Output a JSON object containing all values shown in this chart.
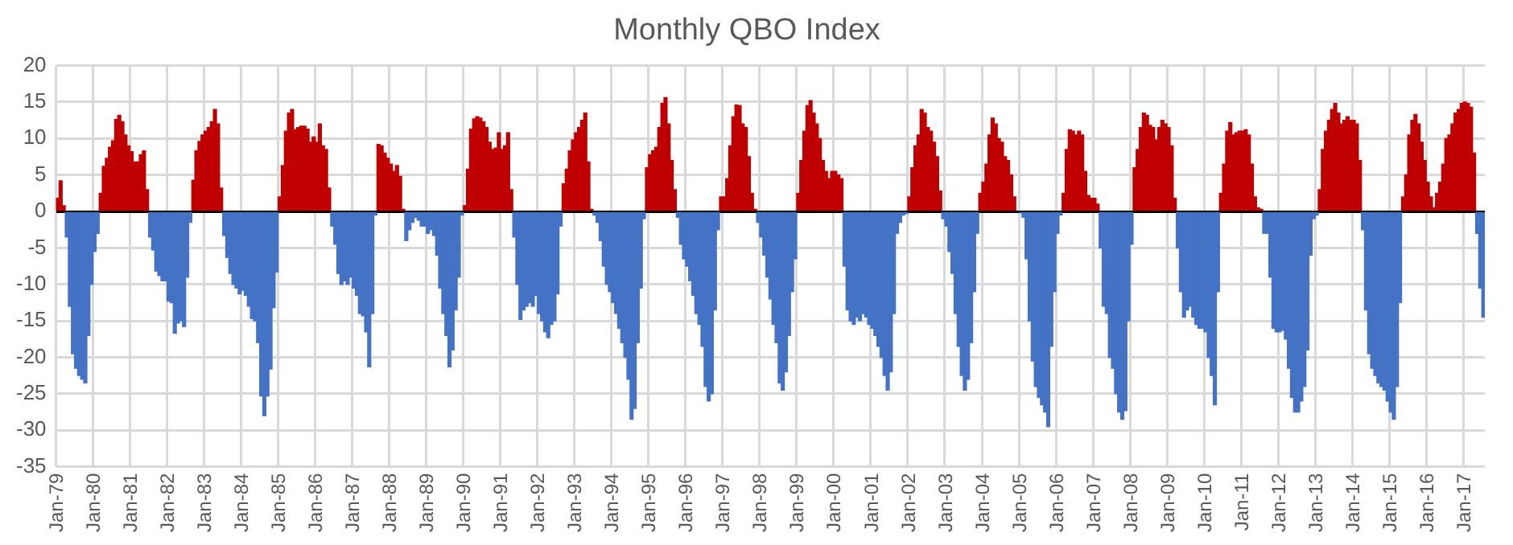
{
  "chart_data": {
    "type": "bar",
    "title": "Monthly QBO Index",
    "categories": [
      "Jan-79",
      null,
      null,
      null,
      null,
      null,
      null,
      null,
      null,
      null,
      null,
      null,
      "Jan-80",
      null,
      null,
      null,
      null,
      null,
      null,
      null,
      null,
      null,
      null,
      null,
      "Jan-81",
      null,
      null,
      null,
      null,
      null,
      null,
      null,
      null,
      null,
      null,
      null,
      "Jan-82",
      null,
      null,
      null,
      null,
      null,
      null,
      null,
      null,
      null,
      null,
      null,
      "Jan-83",
      null,
      null,
      null,
      null,
      null,
      null,
      null,
      null,
      null,
      null,
      null,
      "Jan-84",
      null,
      null,
      null,
      null,
      null,
      null,
      null,
      null,
      null,
      null,
      null,
      "Jan-85",
      null,
      null,
      null,
      null,
      null,
      null,
      null,
      null,
      null,
      null,
      null,
      "Jan-86",
      null,
      null,
      null,
      null,
      null,
      null,
      null,
      null,
      null,
      null,
      null,
      "Jan-87",
      null,
      null,
      null,
      null,
      null,
      null,
      null,
      null,
      null,
      null,
      null,
      "Jan-88",
      null,
      null,
      null,
      null,
      null,
      null,
      null,
      null,
      null,
      null,
      null,
      "Jan-89",
      null,
      null,
      null,
      null,
      null,
      null,
      null,
      null,
      null,
      null,
      null,
      "Jan-90",
      null,
      null,
      null,
      null,
      null,
      null,
      null,
      null,
      null,
      null,
      null,
      "Jan-91",
      null,
      null,
      null,
      null,
      null,
      null,
      null,
      null,
      null,
      null,
      null,
      "Jan-92",
      null,
      null,
      null,
      null,
      null,
      null,
      null,
      null,
      null,
      null,
      null,
      "Jan-93",
      null,
      null,
      null,
      null,
      null,
      null,
      null,
      null,
      null,
      null,
      null,
      "Jan-94",
      null,
      null,
      null,
      null,
      null,
      null,
      null,
      null,
      null,
      null,
      null,
      "Jan-95",
      null,
      null,
      null,
      null,
      null,
      null,
      null,
      null,
      null,
      null,
      null,
      "Jan-96",
      null,
      null,
      null,
      null,
      null,
      null,
      null,
      null,
      null,
      null,
      null,
      "Jan-97",
      null,
      null,
      null,
      null,
      null,
      null,
      null,
      null,
      null,
      null,
      null,
      "Jan-98",
      null,
      null,
      null,
      null,
      null,
      null,
      null,
      null,
      null,
      null,
      null,
      "Jan-99",
      null,
      null,
      null,
      null,
      null,
      null,
      null,
      null,
      null,
      null,
      null,
      "Jan-00",
      null,
      null,
      null,
      null,
      null,
      null,
      null,
      null,
      null,
      null,
      null,
      "Jan-01",
      null,
      null,
      null,
      null,
      null,
      null,
      null,
      null,
      null,
      null,
      null,
      "Jan-02",
      null,
      null,
      null,
      null,
      null,
      null,
      null,
      null,
      null,
      null,
      null,
      "Jan-03",
      null,
      null,
      null,
      null,
      null,
      null,
      null,
      null,
      null,
      null,
      null,
      "Jan-04",
      null,
      null,
      null,
      null,
      null,
      null,
      null,
      null,
      null,
      null,
      null,
      "Jan-05",
      null,
      null,
      null,
      null,
      null,
      null,
      null,
      null,
      null,
      null,
      null,
      "Jan-06",
      null,
      null,
      null,
      null,
      null,
      null,
      null,
      null,
      null,
      null,
      null,
      "Jan-07",
      null,
      null,
      null,
      null,
      null,
      null,
      null,
      null,
      null,
      null,
      null,
      "Jan-08",
      null,
      null,
      null,
      null,
      null,
      null,
      null,
      null,
      null,
      null,
      null,
      "Jan-09",
      null,
      null,
      null,
      null,
      null,
      null,
      null,
      null,
      null,
      null,
      null,
      "Jan-10",
      null,
      null,
      null,
      null,
      null,
      null,
      null,
      null,
      null,
      null,
      null,
      "Jan-11",
      null,
      null,
      null,
      null,
      null,
      null,
      null,
      null,
      null,
      null,
      null,
      "Jan-12",
      null,
      null,
      null,
      null,
      null,
      null,
      null,
      null,
      null,
      null,
      null,
      "Jan-13",
      null,
      null,
      null,
      null,
      null,
      null,
      null,
      null,
      null,
      null,
      null,
      "Jan-14",
      null,
      null,
      null,
      null,
      null,
      null,
      null,
      null,
      null,
      null,
      null,
      "Jan-15",
      null,
      null,
      null,
      null,
      null,
      null,
      null,
      null,
      null,
      null,
      null,
      "Jan-16",
      null,
      null,
      null,
      null,
      null,
      null,
      null,
      null,
      null,
      null,
      null,
      "Jan-17",
      null,
      null,
      null,
      null,
      null,
      null
    ],
    "values": [
      1.8,
      4.2,
      0.8,
      -3.5,
      -13,
      -19.5,
      -21.5,
      -22.5,
      -23,
      -23.5,
      -17,
      -10,
      -5.5,
      -3,
      2.5,
      6.2,
      7.3,
      8.8,
      9.7,
      12.6,
      13.2,
      12.3,
      10.5,
      9,
      8.2,
      6.8,
      6.8,
      7.8,
      8.3,
      3,
      -3.5,
      -5.3,
      -8.2,
      -8.8,
      -9.5,
      -9.5,
      -12.3,
      -12.5,
      -16.7,
      -15.3,
      -15,
      -15.8,
      -9,
      -1.5,
      4.3,
      8.3,
      9.6,
      10.5,
      11,
      11.5,
      12.3,
      14,
      12,
      3.2,
      -3.3,
      -6.3,
      -8.5,
      -10,
      -10.5,
      -11.3,
      -10.8,
      -11.5,
      -13,
      -14.7,
      -15,
      -18,
      -25.3,
      -28,
      -25.3,
      -21.6,
      -13.2,
      -8.3,
      2,
      6.3,
      11,
      13.5,
      14,
      11.2,
      11.5,
      11.7,
      11.7,
      11.3,
      9.5,
      10.2,
      9.5,
      12,
      9,
      8.5,
      3.2,
      -2,
      -4.5,
      -8.5,
      -10,
      -9.5,
      -10,
      -9,
      -10.5,
      -11.5,
      -14,
      -14.3,
      -16.5,
      -21.3,
      -14,
      -0.5,
      9.2,
      9,
      8,
      7.3,
      6.5,
      5.5,
      6.3,
      4.8,
      0.3,
      -4,
      -2.5,
      -1.5,
      -0.8,
      -1.2,
      -2,
      -2,
      -3,
      -2.5,
      -3.3,
      -6,
      -10.5,
      -14,
      -17,
      -21.3,
      -19,
      -13.5,
      -9,
      -0.5,
      0.8,
      5.8,
      11.3,
      12.7,
      13,
      12.8,
      12.3,
      11.5,
      9.5,
      8.5,
      8.7,
      10.8,
      8.5,
      9,
      10.8,
      3,
      -3.5,
      -10,
      -14.8,
      -13.5,
      -13,
      -12.5,
      -13,
      -11.5,
      -14,
      -15,
      -16.5,
      -17.3,
      -15.5,
      -15,
      -11.3,
      -2,
      3.8,
      5.8,
      8.3,
      9.8,
      10.8,
      11.5,
      12.5,
      13.5,
      6.8,
      0.3,
      -0.5,
      -1.5,
      -4,
      -7.5,
      -10,
      -11,
      -12.5,
      -14,
      -16,
      -18,
      -20,
      -23,
      -28.5,
      -27,
      -18,
      -10.5,
      -1,
      6,
      7.8,
      8.3,
      8.8,
      11.5,
      14.8,
      15.6,
      12,
      7,
      3,
      -0.8,
      -4.5,
      -6.5,
      -7.5,
      -9.5,
      -11.5,
      -14,
      -15.5,
      -18.5,
      -24,
      -26,
      -25,
      -13.5,
      -2.5,
      2,
      2,
      4.5,
      9,
      13,
      14.6,
      14.5,
      12,
      11.5,
      7.5,
      2.5,
      0.3,
      -1.5,
      -3.5,
      -6,
      -9,
      -12,
      -15.5,
      -18,
      -23.5,
      -24.5,
      -22,
      -17,
      -11,
      -6.5,
      2.5,
      7,
      11,
      14.5,
      15.2,
      13.5,
      12,
      10,
      7,
      5.5,
      4.5,
      5.5,
      5.5,
      5,
      4.5,
      -7.5,
      -13.5,
      -15,
      -15.5,
      -14.5,
      -15,
      -14,
      -14.5,
      -15.5,
      -16,
      -17,
      -18.5,
      -20,
      -22.5,
      -24.5,
      -22,
      -14,
      -3,
      -1.5,
      -0.5,
      -0.3,
      2,
      6,
      9,
      10.5,
      14,
      13.5,
      11.5,
      11,
      9.5,
      7.5,
      2.8,
      -1,
      -2,
      -5.5,
      -8.5,
      -14,
      -18.5,
      -22.5,
      -24.5,
      -23,
      -18,
      -11,
      -3,
      2.5,
      4,
      6.5,
      10.5,
      12.8,
      12,
      10,
      9.5,
      7.5,
      7,
      5,
      2,
      null,
      -0.2,
      -0.8,
      -6.5,
      -15,
      -20.5,
      -24,
      -25.5,
      -26.5,
      -27.5,
      -29.5,
      -18.5,
      -11,
      -3,
      -0.5,
      2.5,
      8.5,
      11.2,
      11,
      10.5,
      11,
      10.5,
      5.5,
      2.2,
      1.8,
      1.8,
      1,
      -5,
      -13,
      -14,
      -20,
      -21.5,
      -25,
      -27.5,
      -28.5,
      -27.3,
      -15,
      -4.5,
      6,
      8.5,
      11.5,
      13.5,
      13.2,
      11.8,
      11.5,
      9.8,
      11.5,
      12.5,
      12,
      11.5,
      9,
      1.8,
      -5,
      -11,
      -14.5,
      -13.5,
      -13,
      -14.5,
      -15.5,
      -16,
      -16,
      -16.5,
      -20,
      -22.5,
      -26.5,
      -11,
      2.5,
      6.5,
      11,
      12.2,
      10.5,
      10.8,
      11,
      11,
      11.2,
      10.5,
      6.5,
      2,
      0.5,
      0.3,
      -3,
      -3,
      -9,
      -16,
      -16.5,
      -16.5,
      -16.3,
      -17.5,
      -21.5,
      -25.5,
      -27.5,
      -27.5,
      -26,
      -24,
      -19,
      -6,
      -1,
      -0.5,
      3,
      8.5,
      11,
      12.5,
      14,
      14.8,
      13.5,
      12,
      12.5,
      13,
      12.5,
      12.5,
      12,
      7,
      -2.5,
      -13.5,
      -19.5,
      -21.5,
      -22.5,
      -23.5,
      -24,
      -24.5,
      -26,
      -27.5,
      -28.5,
      -24,
      -12.5,
      2,
      5,
      10.5,
      12.5,
      13.3,
      12,
      9.5,
      7,
      4,
      2,
      0.5,
      2.5,
      4,
      6.5,
      10,
      10.5,
      12,
      13.5,
      14,
      14.8,
      15,
      14.8,
      14.3,
      8,
      -3,
      -10.5,
      -14.5
    ],
    "colors": [
      "#c00000",
      "#c00000",
      "#c00000",
      "#4472c4",
      "#4472c4",
      "#4472c4",
      "#4472c4",
      "#4472c4",
      "#4472c4",
      "#4472c4",
      "#4472c4",
      "#4472c4",
      "#4472c4",
      "#4472c4",
      "#c00000",
      "#c00000",
      "#c00000",
      "#c00000",
      "#c00000",
      "#c00000",
      "#c00000",
      "#c00000",
      "#c00000",
      "#c00000",
      "#c00000",
      "#c00000",
      "#c00000",
      "#c00000",
      "#c00000",
      "#c00000",
      "#4472c4",
      "#4472c4",
      "#4472c4",
      "#4472c4",
      "#4472c4",
      "#4472c4",
      "#4472c4",
      "#4472c4",
      "#4472c4",
      "#4472c4",
      "#4472c4",
      "#4472c4",
      "#4472c4",
      "#4472c4",
      "#c00000",
      "#c00000",
      "#c00000",
      "#c00000",
      "#c00000",
      "#c00000",
      "#c00000",
      "#c00000",
      "#c00000",
      "#c00000",
      "#4472c4",
      "#4472c4",
      "#4472c4",
      "#4472c4",
      "#4472c4",
      "#4472c4",
      "#4472c4",
      "#4472c4",
      "#4472c4",
      "#4472c4",
      "#4472c4",
      "#4472c4",
      "#4472c4",
      "#4472c4",
      "#4472c4",
      "#4472c4",
      "#4472c4",
      "#4472c4",
      "#c00000",
      "#c00000",
      "#c00000",
      "#c00000",
      "#c00000",
      "#c00000",
      "#c00000",
      "#c00000",
      "#c00000",
      "#c00000",
      "#c00000",
      "#c00000",
      "#c00000",
      "#c00000",
      "#c00000",
      "#c00000",
      "#c00000",
      "#4472c4",
      "#4472c4",
      "#4472c4",
      "#4472c4",
      "#4472c4",
      "#4472c4",
      "#4472c4",
      "#4472c4",
      "#4472c4",
      "#4472c4",
      "#4472c4",
      "#4472c4",
      "#4472c4",
      "#4472c4",
      "#4472c4",
      "#c00000",
      "#c00000",
      "#c00000",
      "#c00000",
      "#c00000",
      "#c00000",
      "#c00000",
      "#c00000",
      "#c00000",
      "#4472c4",
      "#4472c4",
      "#4472c4",
      "#4472c4",
      "#4472c4",
      "#4472c4",
      "#4472c4",
      "#4472c4",
      "#4472c4",
      "#4472c4",
      "#4472c4",
      "#4472c4",
      "#4472c4",
      "#4472c4",
      "#4472c4",
      "#4472c4",
      "#4472c4",
      "#4472c4",
      "#4472c4",
      "#c00000",
      "#c00000",
      "#c00000",
      "#c00000",
      "#c00000",
      "#c00000",
      "#c00000",
      "#c00000",
      "#c00000",
      "#c00000",
      "#c00000",
      "#c00000",
      "#c00000",
      "#c00000",
      "#c00000",
      "#c00000",
      "#4472c4",
      "#4472c4",
      "#4472c4",
      "#4472c4",
      "#4472c4",
      "#4472c4",
      "#4472c4",
      "#4472c4",
      "#4472c4",
      "#4472c4",
      "#4472c4",
      "#4472c4",
      "#4472c4",
      "#4472c4",
      "#4472c4",
      "#4472c4",
      "#c00000",
      "#c00000",
      "#c00000",
      "#c00000",
      "#c00000",
      "#c00000",
      "#c00000",
      "#c00000",
      "#c00000",
      "#c00000",
      "#4472c4",
      "#4472c4",
      "#4472c4",
      "#4472c4",
      "#4472c4",
      "#4472c4",
      "#4472c4",
      "#4472c4",
      "#4472c4",
      "#4472c4",
      "#4472c4",
      "#4472c4",
      "#4472c4",
      "#4472c4",
      "#4472c4",
      "#4472c4",
      "#4472c4",
      "#c00000",
      "#c00000",
      "#c00000",
      "#c00000",
      "#c00000",
      "#c00000",
      "#c00000",
      "#c00000",
      "#c00000",
      "#c00000",
      "#4472c4",
      "#4472c4",
      "#4472c4",
      "#4472c4",
      "#4472c4",
      "#4472c4",
      "#4472c4",
      "#4472c4",
      "#4472c4",
      "#4472c4",
      "#4472c4",
      "#4472c4",
      "#4472c4",
      "#4472c4",
      "#c00000",
      "#c00000",
      "#c00000",
      "#c00000",
      "#c00000",
      "#c00000",
      "#c00000",
      "#c00000",
      "#c00000",
      "#c00000",
      "#c00000",
      "#c00000",
      "#4472c4",
      "#4472c4",
      "#4472c4",
      "#4472c4",
      "#4472c4",
      "#4472c4",
      "#4472c4",
      "#4472c4",
      "#4472c4",
      "#4472c4",
      "#4472c4",
      "#4472c4",
      "#4472c4",
      "#c00000",
      "#c00000",
      "#c00000",
      "#c00000",
      "#c00000",
      "#c00000",
      "#c00000",
      "#c00000",
      "#c00000",
      "#c00000",
      "#c00000",
      "#c00000",
      "#c00000",
      "#c00000",
      "#c00000",
      "#4472c4",
      "#4472c4",
      "#4472c4",
      "#4472c4",
      "#4472c4",
      "#4472c4",
      "#4472c4",
      "#4472c4",
      "#4472c4",
      "#4472c4",
      "#4472c4",
      "#4472c4",
      "#4472c4",
      "#4472c4",
      "#4472c4",
      "#4472c4",
      "#4472c4",
      "#4472c4",
      "#4472c4",
      "#4472c4",
      "#4472c4",
      "#c00000",
      "#c00000",
      "#c00000",
      "#c00000",
      "#c00000",
      "#c00000",
      "#c00000",
      "#c00000",
      "#c00000",
      "#c00000",
      "#c00000",
      "#4472c4",
      "#4472c4",
      "#4472c4",
      "#4472c4",
      "#4472c4",
      "#4472c4",
      "#4472c4",
      "#4472c4",
      "#4472c4",
      "#4472c4",
      "#4472c4",
      "#4472c4",
      "#c00000",
      "#c00000",
      "#c00000",
      "#c00000",
      "#c00000",
      "#c00000",
      "#c00000",
      "#c00000",
      "#c00000",
      "#c00000",
      "#c00000",
      "#c00000",
      "#4472c4",
      "#4472c4",
      "#4472c4",
      "#4472c4",
      "#4472c4",
      "#4472c4",
      "#4472c4",
      "#4472c4",
      "#4472c4",
      "#4472c4",
      "#4472c4",
      "#4472c4",
      "#4472c4",
      "#4472c4",
      "#4472c4",
      "#c00000",
      "#c00000",
      "#c00000",
      "#c00000",
      "#c00000",
      "#c00000",
      "#c00000",
      "#c00000",
      "#c00000",
      "#c00000",
      "#c00000",
      "#c00000",
      "#4472c4",
      "#4472c4",
      "#4472c4",
      "#4472c4",
      "#4472c4",
      "#4472c4",
      "#4472c4",
      "#4472c4",
      "#4472c4",
      "#4472c4",
      "#4472c4",
      "#c00000",
      "#c00000",
      "#c00000",
      "#c00000",
      "#c00000",
      "#c00000",
      "#c00000",
      "#c00000",
      "#c00000",
      "#c00000",
      "#c00000",
      "#c00000",
      "#c00000",
      "#c00000",
      "#4472c4",
      "#4472c4",
      "#4472c4",
      "#4472c4",
      "#4472c4",
      "#4472c4",
      "#4472c4",
      "#4472c4",
      "#4472c4",
      "#4472c4",
      "#4472c4",
      "#4472c4",
      "#4472c4",
      "#4472c4",
      "#c00000",
      "#c00000",
      "#c00000",
      "#c00000",
      "#c00000",
      "#c00000",
      "#c00000",
      "#c00000",
      "#c00000",
      "#c00000",
      "#c00000",
      "#c00000",
      "#c00000",
      "#c00000",
      "#4472c4",
      "#4472c4",
      "#4472c4",
      "#4472c4",
      "#4472c4",
      "#4472c4",
      "#4472c4",
      "#4472c4",
      "#4472c4",
      "#4472c4",
      "#4472c4",
      "#4472c4",
      "#4472c4",
      "#4472c4",
      "#4472c4",
      "#4472c4",
      "#4472c4",
      "#4472c4",
      "#c00000",
      "#c00000",
      "#c00000",
      "#c00000",
      "#c00000",
      "#c00000",
      "#c00000",
      "#c00000",
      "#c00000",
      "#c00000",
      "#c00000",
      "#c00000",
      "#c00000",
      "#c00000",
      "#4472c4",
      "#4472c4",
      "#4472c4",
      "#4472c4",
      "#4472c4",
      "#4472c4",
      "#4472c4",
      "#4472c4",
      "#4472c4",
      "#4472c4",
      "#4472c4",
      "#4472c4",
      "#4472c4",
      "#c00000",
      "#c00000",
      "#c00000",
      "#c00000",
      "#c00000",
      "#c00000",
      "#c00000",
      "#c00000",
      "#c00000",
      "#c00000",
      "#c00000",
      "#c00000",
      "#c00000",
      "#c00000",
      "#c00000",
      "#c00000",
      "#c00000",
      "#c00000",
      "#c00000",
      "#c00000",
      "#c00000",
      "#c00000",
      "#c00000",
      "#c00000",
      "#4472c4",
      "#4472c4",
      "#4472c4"
    ],
    "ylim": [
      -35,
      20
    ],
    "yticks": [
      -35,
      -30,
      -25,
      -20,
      -15,
      -10,
      -5,
      0,
      5,
      10,
      15,
      20
    ],
    "grid": true
  }
}
